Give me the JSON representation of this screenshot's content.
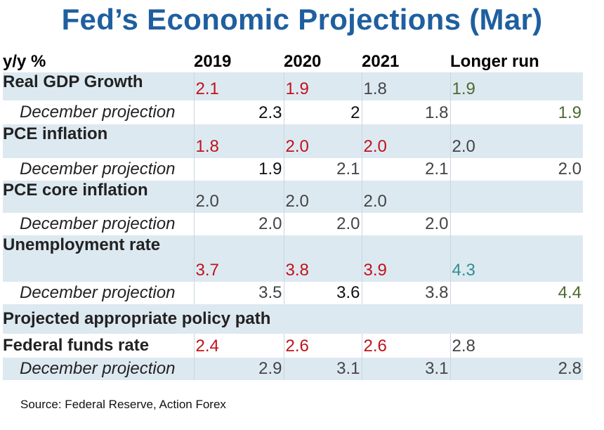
{
  "title": "Fed’s Economic Projections (Mar)",
  "header": {
    "unit": "y/y %",
    "years": [
      "2019",
      "2020",
      "2021",
      "Longer run"
    ]
  },
  "rows": {
    "gdp": {
      "label": "Real GDP Growth",
      "values": [
        "2.1",
        "1.9",
        "1.8",
        "1.9"
      ],
      "dec_label": "December projection",
      "dec_values": [
        "2.3",
        "2",
        "1.8",
        "1.9"
      ]
    },
    "pce": {
      "label": "PCE inflation",
      "values": [
        "1.8",
        "2.0",
        "2.0",
        "2.0"
      ],
      "dec_label": "December projection",
      "dec_values": [
        "1.9",
        "2.1",
        "2.1",
        "2.0"
      ]
    },
    "core": {
      "label": "PCE core inflation",
      "values": [
        "2.0",
        "2.0",
        "2.0",
        ""
      ],
      "dec_label": "December projection",
      "dec_values": [
        "2.0",
        "2.0",
        "2.0",
        ""
      ]
    },
    "unemp": {
      "label": "Unemployment rate",
      "values": [
        "3.7",
        "3.8",
        "3.9",
        "4.3"
      ],
      "dec_label": "December projection",
      "dec_values": [
        "3.5",
        "3.6",
        "3.8",
        "4.4"
      ]
    },
    "policy": {
      "label": "Projected appropriate policy path"
    },
    "ffr": {
      "label": "Federal funds rate",
      "values": [
        "2.4",
        "2.6",
        "2.6",
        "2.8"
      ],
      "dec_label": "December projection",
      "dec_values": [
        "2.9",
        "3.1",
        "3.1",
        "2.8"
      ]
    }
  },
  "colors": {
    "title": "#1f5f9f",
    "changed": "#c0121c",
    "unchanged": "#444444",
    "longer_run": "#4d6a2f",
    "row_shade": "#dde9f1"
  },
  "source": "Source: Federal Reserve, Action Forex"
}
